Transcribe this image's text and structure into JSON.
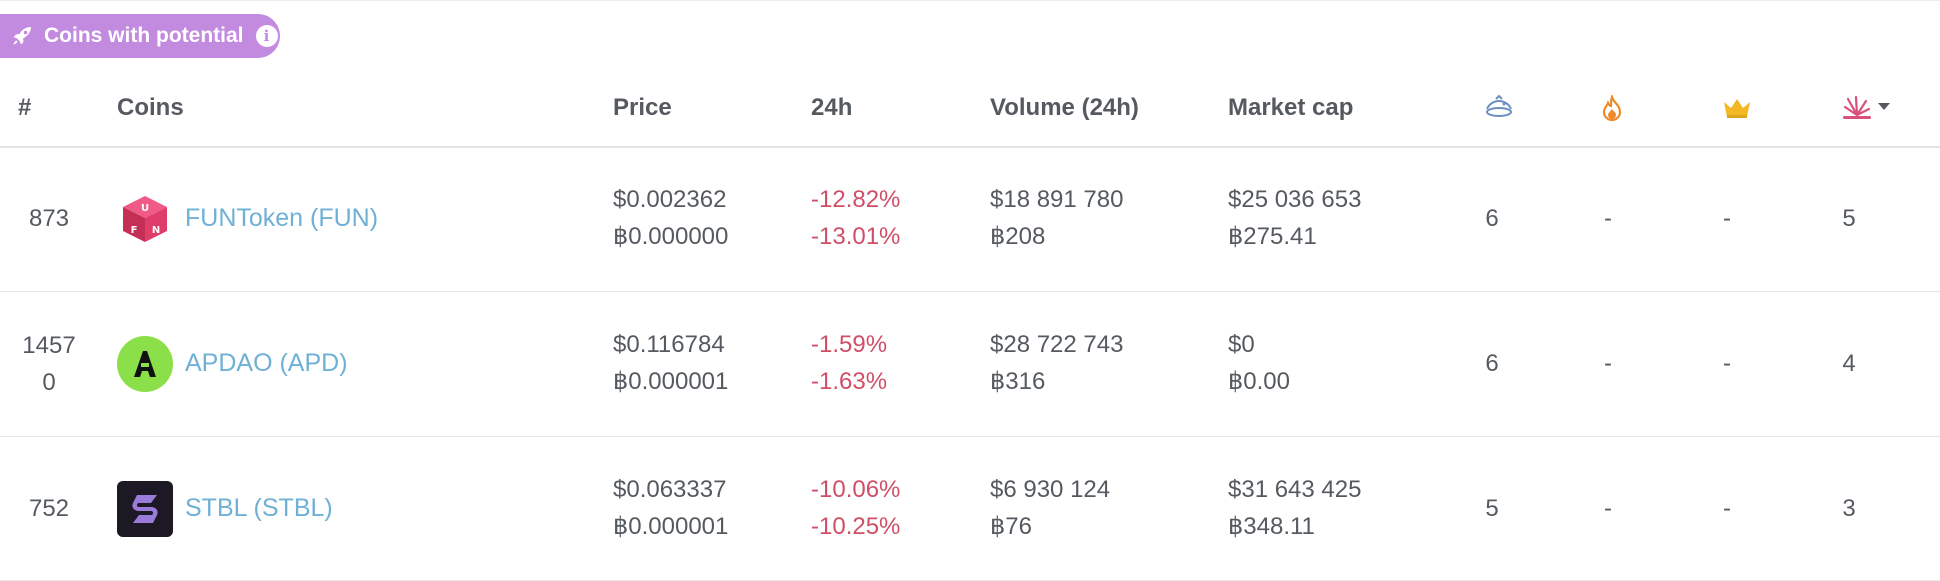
{
  "badge": {
    "label": "Coins with potential",
    "icon": "rocket-icon",
    "info_icon": "info-icon",
    "color": "#c38be0"
  },
  "columns": {
    "rank": "#",
    "coins": "Coins",
    "price": "Price",
    "change_24h": "24h",
    "volume_24h": "Volume (24h)",
    "market_cap": "Market cap",
    "icon_cols": [
      "spaceship-icon",
      "fire-icon",
      "crown-icon",
      "explosion-icon"
    ],
    "sort_indicator": "caret-down-icon"
  },
  "colors": {
    "link": "#6fb0d6",
    "negative": "#cf4f66",
    "text": "#555a60"
  },
  "rows": [
    {
      "rank": "873",
      "name": "FUNToken (FUN)",
      "logo": "funtoken-logo",
      "price_usd": "$0.002362",
      "price_btc": "฿0.000000",
      "change_usd": "-12.82%",
      "change_btc": "-13.01%",
      "volume_usd": "$18 891 780",
      "volume_btc": "฿208",
      "mcap_usd": "$25 036 653",
      "mcap_btc": "฿275.41",
      "col1": "6",
      "col2": "-",
      "col3": "-",
      "col4": "5"
    },
    {
      "rank": "14570",
      "name": "APDAO (APD)",
      "logo": "apdao-logo",
      "price_usd": "$0.116784",
      "price_btc": "฿0.000001",
      "change_usd": "-1.59%",
      "change_btc": "-1.63%",
      "volume_usd": "$28 722 743",
      "volume_btc": "฿316",
      "mcap_usd": "$0",
      "mcap_btc": "฿0.00",
      "col1": "6",
      "col2": "-",
      "col3": "-",
      "col4": "4"
    },
    {
      "rank": "752",
      "name": "STBL (STBL)",
      "logo": "stbl-logo",
      "price_usd": "$0.063337",
      "price_btc": "฿0.000001",
      "change_usd": "-10.06%",
      "change_btc": "-10.25%",
      "volume_usd": "$6 930 124",
      "volume_btc": "฿76",
      "mcap_usd": "$31 643 425",
      "mcap_btc": "฿348.11",
      "col1": "5",
      "col2": "-",
      "col3": "-",
      "col4": "3"
    }
  ]
}
